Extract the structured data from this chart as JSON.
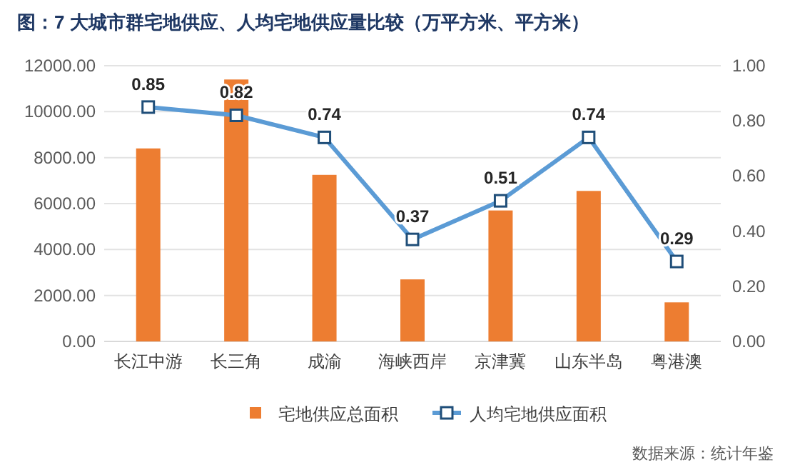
{
  "chart_data": {
    "type": "bar",
    "title": "图：7 大城市群宅地供应、人均宅地供应量比较（万平方米、平方米）",
    "categories": [
      "长江中游",
      "长三角",
      "成渝",
      "海峡西岸",
      "京津冀",
      "山东半岛",
      "粤港澳"
    ],
    "series": [
      {
        "name": "宅地供应总面积",
        "color": "#ed7d31",
        "values": [
          8400,
          11400,
          7250,
          2700,
          5700,
          6550,
          1700
        ]
      },
      {
        "name": "人均宅地供应面积",
        "type": "line",
        "axis": "y2",
        "color": "#5b9bd5",
        "marker": "square",
        "data_labels": true,
        "values": [
          0.85,
          0.82,
          0.74,
          0.37,
          0.51,
          0.74,
          0.29
        ]
      }
    ],
    "ylim": [
      0,
      12000
    ],
    "yticks": [
      {
        "value": 0,
        "label": "0.00"
      },
      {
        "value": 2000,
        "label": "2000.00"
      },
      {
        "value": 4000,
        "label": "4000.00"
      },
      {
        "value": 6000,
        "label": "6000.00"
      },
      {
        "value": 8000,
        "label": "8000.00"
      },
      {
        "value": 10000,
        "label": "10000.00"
      },
      {
        "value": 12000,
        "label": "12000.00"
      }
    ],
    "y2lim": [
      0,
      1
    ],
    "y2ticks": [
      {
        "value": 0,
        "label": "0.00"
      },
      {
        "value": 0.2,
        "label": "0.20"
      },
      {
        "value": 0.4,
        "label": "0.40"
      },
      {
        "value": 0.6,
        "label": "0.60"
      },
      {
        "value": 0.8,
        "label": "0.80"
      },
      {
        "value": 1,
        "label": "1.00"
      }
    ],
    "grid": "y",
    "legend": "bottom",
    "annotations": [
      "数据来源：统计年鉴"
    ]
  }
}
